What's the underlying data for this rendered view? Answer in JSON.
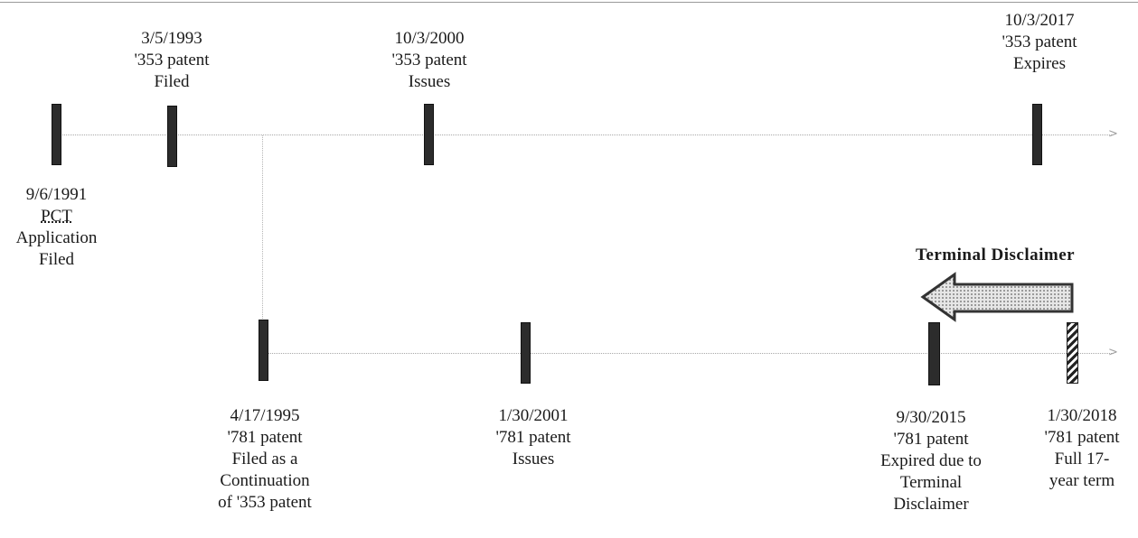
{
  "top_timeline": {
    "events": [
      {
        "id": "pct",
        "lines": [
          "9/6/1991",
          "PCT",
          "Application",
          "Filed"
        ]
      },
      {
        "id": "filed353",
        "lines": [
          "3/5/1993",
          "'353 patent",
          "Filed"
        ]
      },
      {
        "id": "issues353",
        "lines": [
          "10/3/2000",
          "'353 patent",
          "Issues"
        ]
      },
      {
        "id": "expires353",
        "lines": [
          "10/3/2017",
          "'353 patent",
          "Expires"
        ]
      }
    ]
  },
  "bottom_timeline": {
    "events": [
      {
        "id": "filed781",
        "lines": [
          "4/17/1995",
          "'781 patent",
          "Filed as a",
          "Continuation",
          "of '353 patent"
        ]
      },
      {
        "id": "issues781",
        "lines": [
          "1/30/2001",
          "'781 patent",
          "Issues"
        ]
      },
      {
        "id": "expired781",
        "lines": [
          "9/30/2015",
          "'781 patent",
          "Expired due to",
          "Terminal",
          "Disclaimer"
        ]
      },
      {
        "id": "fullterm781",
        "lines": [
          "1/30/2018",
          "'781 patent",
          "Full 17-",
          "year term"
        ]
      }
    ]
  },
  "terminal_disclaimer": {
    "title": "Terminal Disclaimer"
  },
  "colors": {
    "marker": "#2c2c2c",
    "axis": "#a8a8a8",
    "arrow_fill": "#c8c8c8",
    "arrow_stroke": "#333333"
  }
}
